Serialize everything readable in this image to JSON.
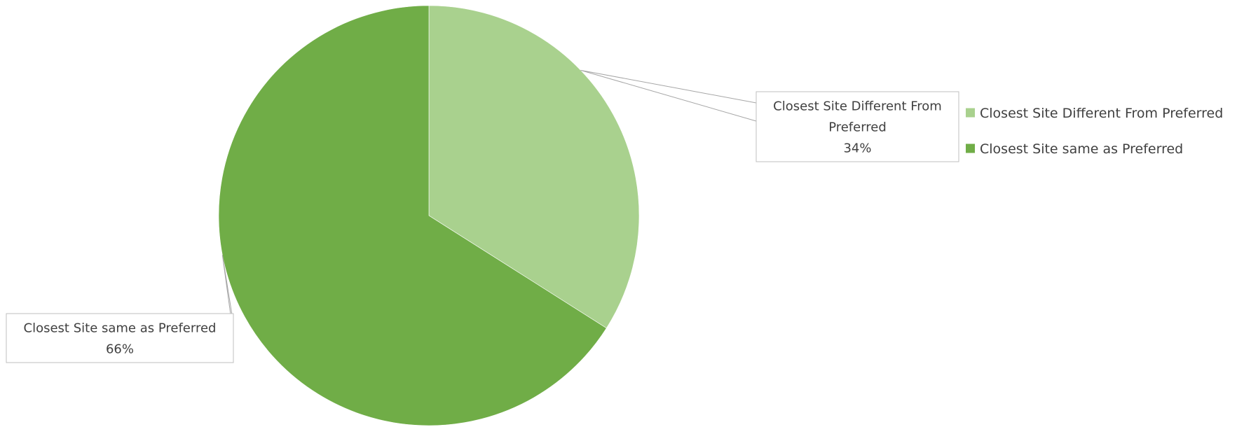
{
  "chart_data": {
    "type": "pie",
    "slices": [
      {
        "name": "Closest Site Different From Preferred",
        "value": 34,
        "value_label": "34%",
        "color": "#a9d18e"
      },
      {
        "name": "Closest Site same as Preferred",
        "value": 66,
        "value_label": "66%",
        "color": "#70ad47"
      }
    ],
    "legend_placement": "right",
    "data_label_border_color": "#bfbfbf",
    "leader_line_color": "#a6a6a6"
  }
}
